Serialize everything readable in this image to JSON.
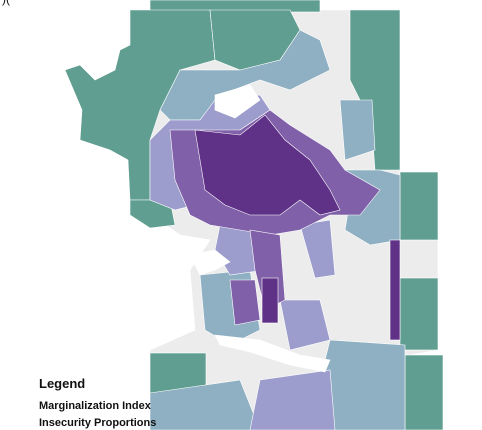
{
  "header": {
    "fragment": ")("
  },
  "legend": {
    "title": "Legend",
    "items": [
      "Marginalization Index",
      "Insecurity Proportions"
    ]
  }
}
